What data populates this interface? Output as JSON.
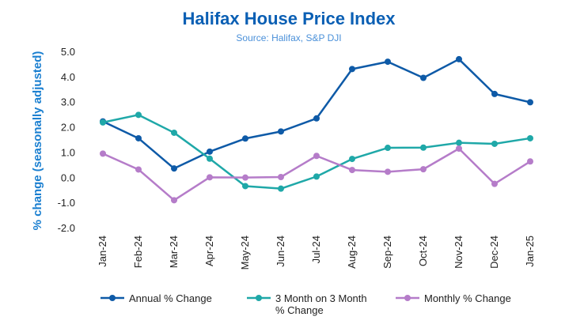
{
  "colors": {
    "title": "#0a5fb4",
    "subtitle": "#4a90d9",
    "axis_label": "#1a7fd0",
    "annual": "#0e5aa7",
    "three_month": "#1fa8a8",
    "monthly": "#b57cc9"
  },
  "chart_data": {
    "type": "line",
    "title": "Halifax House Price Index",
    "subtitle": "Source: Halifax, S&P DJI",
    "xlabel": "",
    "ylabel": "% change (seasonally adjusted)",
    "ylim": [
      -2.0,
      5.0
    ],
    "yticks": [
      "5.0",
      "4.0",
      "3.0",
      "2.0",
      "1.0",
      "0.0",
      "-1.0",
      "-2.0"
    ],
    "ytick_values": [
      5,
      4,
      3,
      2,
      1,
      0,
      -1,
      -2
    ],
    "grid": false,
    "legend_position": "bottom",
    "categories": [
      "Jan-24",
      "Feb-24",
      "Mar-24",
      "Apr-24",
      "May-24",
      "Jun-24",
      "Jul-24",
      "Aug-24",
      "Sep-24",
      "Oct-24",
      "Nov-24",
      "Dec-24",
      "Jan-25"
    ],
    "series": [
      {
        "key": "annual",
        "name": "Annual % Change",
        "legend_lines": [
          "Annual % Change"
        ],
        "values": [
          2.25,
          1.58,
          0.38,
          1.05,
          1.57,
          1.85,
          2.37,
          4.33,
          4.62,
          3.98,
          4.72,
          3.34,
          3.01
        ]
      },
      {
        "key": "three_month",
        "name": "3 Month on 3 Month % Change",
        "legend_lines": [
          "3 Month on 3 Month",
          "% Change"
        ],
        "values": [
          2.21,
          2.51,
          1.8,
          0.77,
          -0.32,
          -0.42,
          0.06,
          0.76,
          1.2,
          1.21,
          1.4,
          1.36,
          1.58
        ]
      },
      {
        "key": "monthly",
        "name": "Monthly % Change",
        "legend_lines": [
          "Monthly % Change"
        ],
        "values": [
          0.97,
          0.34,
          -0.88,
          0.03,
          0.02,
          0.04,
          0.88,
          0.32,
          0.25,
          0.35,
          1.17,
          -0.23,
          0.66
        ]
      }
    ]
  }
}
